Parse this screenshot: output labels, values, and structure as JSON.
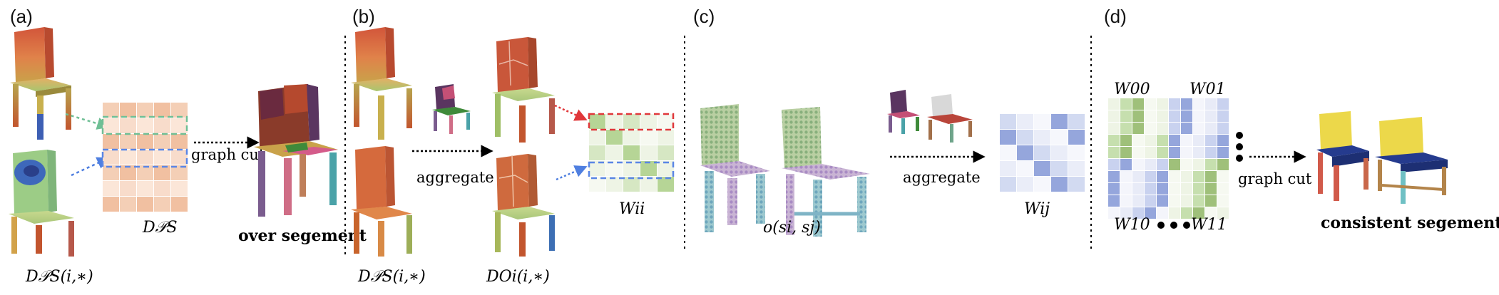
{
  "panels": [
    {
      "letter": "(a)"
    },
    {
      "letter": "(b)"
    },
    {
      "letter": "(c)"
    },
    {
      "letter": "(d)"
    }
  ],
  "labels": {
    "dps_row_a": "D𝒫S(i,∗)",
    "dps_matrix": "D𝒫S",
    "graph_cut_a": "graph cut",
    "over_segment": "over segement",
    "dps_row_b": "D𝒫S(i,∗)",
    "doi_row": "DOi(i,∗)",
    "aggregate_b": "aggregate",
    "wii": "Wii",
    "o_sisj": "o(si, sj)",
    "aggregate_c": "aggregate",
    "wij": "Wij",
    "w00": "W00",
    "w01": "W01",
    "w10": "W10",
    "w11": "W11",
    "graph_cut_d": "graph cut",
    "consistent": "consistent segementation"
  },
  "colors": {
    "orange_chair": "#d9643a",
    "green_region": "#9fc07a",
    "blue_leg": "#3d5fb4",
    "red_dash": "#e0373a",
    "green_dash": "#6fbf95",
    "blue_dash": "#5a86e6",
    "purple_cell": "#95a6dc",
    "green_cell": "#b6d596",
    "yellow_seat": "#ecd84a",
    "navy_seat": "#253b8e"
  }
}
